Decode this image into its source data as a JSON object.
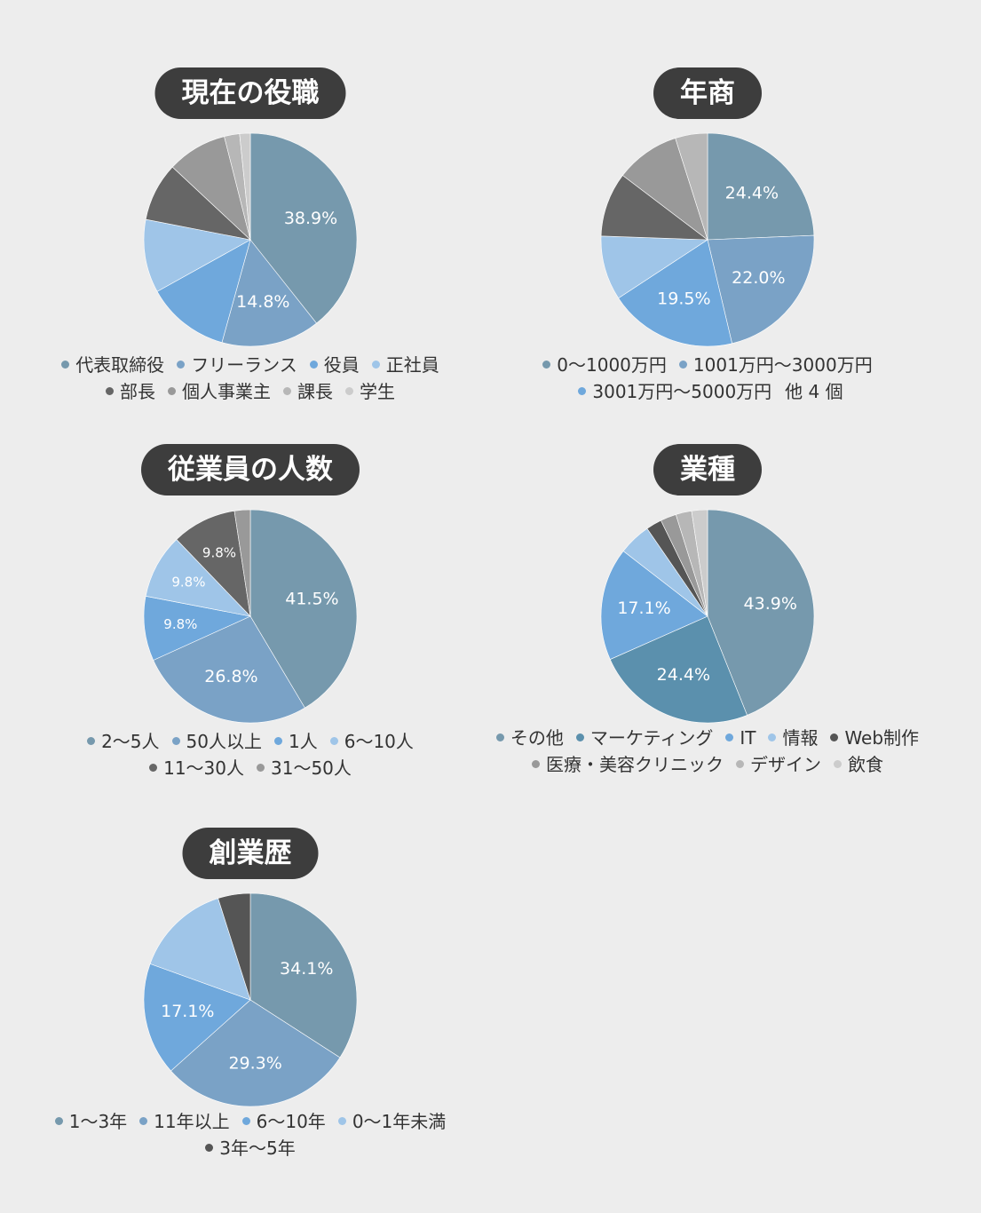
{
  "chart_data": [
    {
      "id": "role",
      "type": "pie",
      "title": "現在の役職",
      "categories": [
        "代表取締役",
        "フリーランス",
        "役員",
        "正社員",
        "部長",
        "個人事業主",
        "課長",
        "学生"
      ],
      "values": [
        38.9,
        14.8,
        12.5,
        11.0,
        8.8,
        9.0,
        2.3,
        1.6
      ],
      "labels": [
        "38.9%",
        "14.8%",
        "",
        "",
        "",
        "",
        "",
        ""
      ],
      "colors": [
        "#7699ad",
        "#7aa2c6",
        "#6fa8dc",
        "#9fc5e8",
        "#666666",
        "#999999",
        "#b7b7b7",
        "#cccccc"
      ],
      "legend_lines": [
        [
          0,
          1,
          2,
          3
        ],
        [
          4,
          5,
          6,
          7
        ]
      ],
      "legend_extra": ""
    },
    {
      "id": "revenue",
      "type": "pie",
      "title": "年商",
      "categories": [
        "0〜1000万円",
        "1001万円〜3000万円",
        "3001万円〜5000万円",
        "",
        "",
        "",
        ""
      ],
      "values": [
        24.4,
        22.0,
        19.5,
        9.8,
        9.8,
        9.8,
        4.9
      ],
      "labels": [
        "24.4%",
        "22.0%",
        "19.5%",
        "",
        "",
        "",
        ""
      ],
      "colors": [
        "#7699ad",
        "#7aa2c6",
        "#6fa8dc",
        "#9fc5e8",
        "#666666",
        "#999999",
        "#b7b7b7"
      ],
      "legend_lines": [
        [
          0,
          1
        ],
        [
          2
        ]
      ],
      "legend_extra": "他 4 個"
    },
    {
      "id": "employees",
      "type": "pie",
      "title": "従業員の人数",
      "categories": [
        "2〜5人",
        "50人以上",
        "1人",
        "6〜10人",
        "11〜30人",
        "31〜50人"
      ],
      "values": [
        41.5,
        26.8,
        9.8,
        9.8,
        9.8,
        2.4
      ],
      "labels": [
        "41.5%",
        "26.8%",
        "9.8%",
        "9.8%",
        "9.8%",
        ""
      ],
      "colors": [
        "#7699ad",
        "#7aa2c6",
        "#6fa8dc",
        "#9fc5e8",
        "#666666",
        "#999999"
      ],
      "legend_lines": [
        [
          0,
          1,
          2,
          3
        ],
        [
          4,
          5
        ]
      ],
      "legend_extra": ""
    },
    {
      "id": "industry",
      "type": "pie",
      "title": "業種",
      "categories": [
        "その他",
        "マーケティング",
        "IT",
        "情報",
        "Web制作",
        "医療・美容クリニック",
        "デザイン",
        "飲食"
      ],
      "values": [
        43.9,
        24.4,
        17.1,
        4.9,
        2.4,
        2.4,
        2.4,
        2.4
      ],
      "labels": [
        "43.9%",
        "24.4%",
        "17.1%",
        "",
        "",
        "",
        "",
        ""
      ],
      "colors": [
        "#7699ad",
        "#5b90ad",
        "#6fa8dc",
        "#9fc5e8",
        "#555555",
        "#999999",
        "#b7b7b7",
        "#cccccc"
      ],
      "legend_lines": [
        [
          0,
          1,
          2,
          3,
          4
        ],
        [
          5,
          6,
          7
        ]
      ],
      "legend_extra": ""
    },
    {
      "id": "history",
      "type": "pie",
      "title": "創業歴",
      "categories": [
        "1〜3年",
        "11年以上",
        "6〜10年",
        "0〜1年未満",
        "3年〜5年"
      ],
      "values": [
        34.1,
        29.3,
        17.1,
        14.6,
        4.9
      ],
      "labels": [
        "34.1%",
        "29.3%",
        "17.1%",
        "",
        ""
      ],
      "colors": [
        "#7699ad",
        "#7aa2c6",
        "#6fa8dc",
        "#9fc5e8",
        "#555555"
      ],
      "legend_lines": [
        [
          0,
          1,
          2,
          3
        ],
        [
          4
        ]
      ],
      "legend_extra": ""
    }
  ]
}
